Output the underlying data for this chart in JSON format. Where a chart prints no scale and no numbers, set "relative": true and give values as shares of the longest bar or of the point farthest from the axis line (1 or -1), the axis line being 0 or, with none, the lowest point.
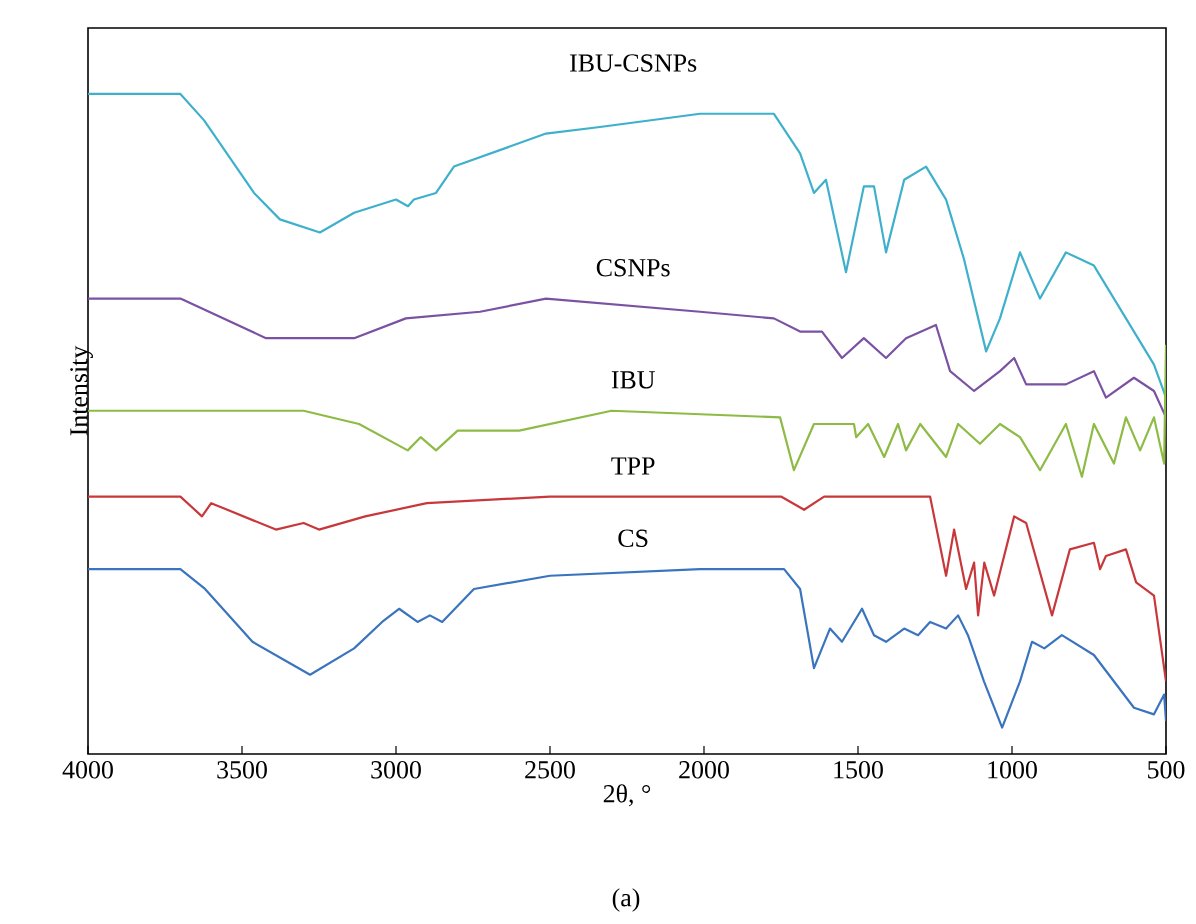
{
  "chart_data": {
    "type": "line",
    "relative": true,
    "xlabel": "2θ, °",
    "ylabel": "Intensity",
    "xlim": [
      4000,
      500
    ],
    "xticks": [
      4000,
      3500,
      3000,
      2500,
      2000,
      1500,
      1000,
      500
    ],
    "grid": false,
    "legend": false,
    "marker": "none",
    "line_style": "solid",
    "annotations": [
      "(a)"
    ],
    "series": [
      {
        "name": "IBU-CSNPs",
        "color": "#3fb0cc",
        "x": [
          4000,
          3700,
          3623,
          3461,
          3377,
          3247,
          3136,
          3000,
          2961,
          2942,
          2870,
          2812,
          2513,
          2338,
          2013,
          1773,
          1688,
          1643,
          1604,
          1539,
          1481,
          1448,
          1409,
          1350,
          1279,
          1214,
          1156,
          1084,
          1039,
          974,
          909,
          825,
          734,
          630,
          539,
          500
        ],
        "values": [
          1.0,
          1.0,
          0.96,
          0.85,
          0.81,
          0.79,
          0.82,
          0.84,
          0.83,
          0.84,
          0.85,
          0.89,
          0.94,
          0.95,
          0.97,
          0.97,
          0.91,
          0.85,
          0.87,
          0.73,
          0.86,
          0.86,
          0.76,
          0.87,
          0.89,
          0.84,
          0.75,
          0.61,
          0.66,
          0.76,
          0.69,
          0.76,
          0.74,
          0.66,
          0.59,
          0.54
        ]
      },
      {
        "name": "CSNPs",
        "color": "#7b52a3",
        "x": [
          4000,
          3700,
          3422,
          3247,
          3136,
          2968,
          2727,
          2513,
          2013,
          1773,
          1688,
          1617,
          1552,
          1481,
          1409,
          1344,
          1247,
          1201,
          1123,
          1039,
          993,
          954,
          825,
          734,
          695,
          604,
          539,
          500
        ],
        "values": [
          0.69,
          0.69,
          0.63,
          0.63,
          0.63,
          0.66,
          0.67,
          0.69,
          0.67,
          0.66,
          0.64,
          0.64,
          0.6,
          0.63,
          0.6,
          0.63,
          0.65,
          0.58,
          0.55,
          0.58,
          0.6,
          0.56,
          0.56,
          0.58,
          0.54,
          0.57,
          0.55,
          0.51
        ]
      },
      {
        "name": "IBU",
        "color": "#8dbb45",
        "x": [
          4000,
          3300,
          3120,
          2962,
          2920,
          2870,
          2800,
          2600,
          2300,
          1753,
          1708,
          1643,
          1513,
          1506,
          1467,
          1415,
          1370,
          1344,
          1298,
          1214,
          1175,
          1104,
          1039,
          974,
          909,
          825,
          773,
          734,
          669,
          630,
          584,
          539,
          506,
          500
        ],
        "values": [
          0.52,
          0.52,
          0.5,
          0.46,
          0.48,
          0.46,
          0.49,
          0.49,
          0.52,
          0.51,
          0.43,
          0.5,
          0.5,
          0.48,
          0.5,
          0.45,
          0.5,
          0.46,
          0.5,
          0.45,
          0.5,
          0.47,
          0.5,
          0.48,
          0.43,
          0.5,
          0.42,
          0.5,
          0.44,
          0.51,
          0.46,
          0.51,
          0.44,
          0.62
        ]
      },
      {
        "name": "TPP",
        "color": "#c8383b",
        "x": [
          4000,
          3700,
          3630,
          3600,
          3390,
          3300,
          3250,
          3100,
          2900,
          2500,
          1750,
          1675,
          1610,
          1266,
          1214,
          1188,
          1149,
          1123,
          1110,
          1090,
          1058,
          993,
          954,
          870,
          812,
          734,
          714,
          695,
          630,
          597,
          539,
          500
        ],
        "values": [
          0.39,
          0.39,
          0.36,
          0.38,
          0.34,
          0.35,
          0.34,
          0.36,
          0.38,
          0.39,
          0.39,
          0.37,
          0.39,
          0.39,
          0.27,
          0.34,
          0.25,
          0.29,
          0.21,
          0.29,
          0.24,
          0.36,
          0.35,
          0.21,
          0.31,
          0.32,
          0.28,
          0.3,
          0.31,
          0.26,
          0.24,
          0.11
        ]
      },
      {
        "name": "CS",
        "color": "#3a74be",
        "x": [
          4000,
          3700,
          3620,
          3466,
          3279,
          3136,
          3045,
          2990,
          2930,
          2890,
          2850,
          2747,
          2500,
          2013,
          1740,
          1688,
          1643,
          1591,
          1552,
          1487,
          1448,
          1409,
          1350,
          1305,
          1266,
          1214,
          1175,
          1143,
          1091,
          1032,
          974,
          935,
          895,
          838,
          734,
          604,
          539,
          506,
          500
        ],
        "values": [
          0.28,
          0.28,
          0.25,
          0.17,
          0.12,
          0.16,
          0.2,
          0.22,
          0.2,
          0.21,
          0.2,
          0.25,
          0.27,
          0.28,
          0.28,
          0.25,
          0.13,
          0.19,
          0.17,
          0.22,
          0.18,
          0.17,
          0.19,
          0.18,
          0.2,
          0.19,
          0.21,
          0.18,
          0.11,
          0.04,
          0.11,
          0.17,
          0.16,
          0.18,
          0.15,
          0.07,
          0.06,
          0.09,
          0.05
        ]
      }
    ]
  }
}
